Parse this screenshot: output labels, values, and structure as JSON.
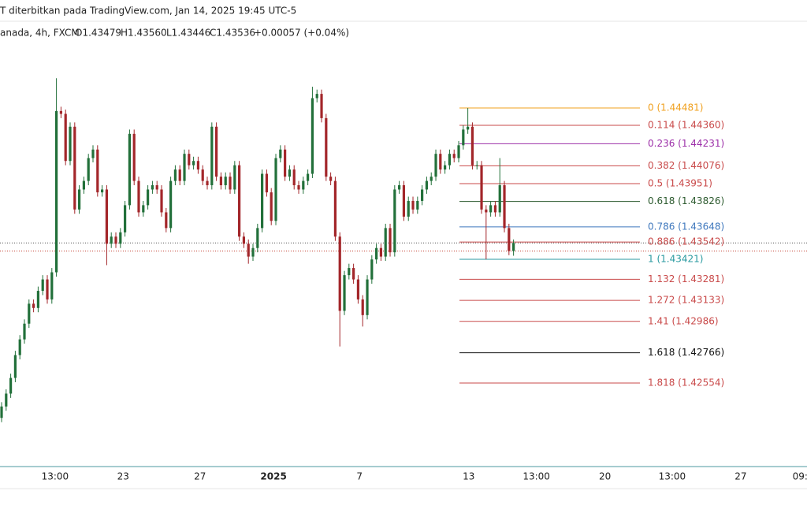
{
  "chart_data": {
    "type": "candlestick",
    "title": "T diterbitkan pada TradingView.com, Jan 14, 2025 19:45 UTC-5",
    "legend": {
      "symbol": "anada, 4h, FXCM",
      "open": "O1.43479",
      "high": "H1.43560",
      "low": "L1.43446",
      "close": "C1.43536",
      "change": "+0.00057 (+0.04%)"
    },
    "up_color": "#22703a",
    "down_color": "#a3262a",
    "open": [
      1.4231,
      1.4239,
      1.4248,
      1.4259,
      1.4275,
      1.4286,
      1.4297,
      1.4311,
      1.4308,
      1.432,
      1.4328,
      1.4314,
      1.4333,
      1.4446,
      1.4444,
      1.4411,
      1.4435,
      1.4377,
      1.4391,
      1.4397,
      1.4413,
      1.4419,
      1.4389,
      1.4391,
      1.4353,
      1.4358,
      1.4353,
      1.4361,
      1.438,
      1.443,
      1.4397,
      1.4375,
      1.438,
      1.4391,
      1.4394,
      1.4391,
      1.4375,
      1.4364,
      1.4397,
      1.4405,
      1.4397,
      1.4416,
      1.4408,
      1.4411,
      1.4405,
      1.4397,
      1.4394,
      1.4435,
      1.44,
      1.4394,
      1.44,
      1.4391,
      1.4408,
      1.4358,
      1.4353,
      1.4344,
      1.435,
      1.4364,
      1.4402,
      1.4389,
      1.4369,
      1.4413,
      1.4419,
      1.44,
      1.4405,
      1.4394,
      1.4391,
      1.4397,
      1.4402,
      1.4455,
      1.4458,
      1.4441,
      1.44,
      1.4397,
      1.4358,
      1.4306,
      1.4331,
      1.4336,
      1.4328,
      1.4314,
      1.4303,
      1.4328,
      1.4342,
      1.435,
      1.4344,
      1.4364,
      1.4347,
      1.4391,
      1.4394,
      1.4372,
      1.4383,
      1.4377,
      1.4383,
      1.4391,
      1.4397,
      1.44,
      1.4416,
      1.4405,
      1.4408,
      1.4416,
      1.4413,
      1.4422,
      1.4433,
      1.4435,
      1.4408,
      1.4408,
      1.4377,
      1.4375,
      1.438,
      1.4375,
      1.4394,
      1.4364,
      1.43479
    ],
    "high": [
      1.4242,
      1.4251,
      1.4262,
      1.4278,
      1.4289,
      1.43,
      1.4314,
      1.4314,
      1.4323,
      1.4331,
      1.4331,
      1.4336,
      1.4469,
      1.4449,
      1.4447,
      1.4438,
      1.4438,
      1.4394,
      1.44,
      1.4416,
      1.4422,
      1.4422,
      1.4394,
      1.4394,
      1.4361,
      1.4361,
      1.4364,
      1.4383,
      1.4433,
      1.4433,
      1.44,
      1.4383,
      1.4394,
      1.4397,
      1.4397,
      1.4394,
      1.4378,
      1.44,
      1.4408,
      1.4408,
      1.4419,
      1.4419,
      1.4414,
      1.4414,
      1.4408,
      1.44,
      1.4438,
      1.4438,
      1.4403,
      1.4403,
      1.4403,
      1.4411,
      1.4411,
      1.4361,
      1.4356,
      1.4353,
      1.4367,
      1.4405,
      1.4405,
      1.4392,
      1.4416,
      1.4422,
      1.4422,
      1.4408,
      1.4408,
      1.4397,
      1.44,
      1.4405,
      1.4463,
      1.4461,
      1.4461,
      1.4444,
      1.4403,
      1.44,
      1.4361,
      1.4334,
      1.4339,
      1.4339,
      1.4331,
      1.4317,
      1.4331,
      1.4345,
      1.4353,
      1.4353,
      1.4367,
      1.4367,
      1.4394,
      1.4397,
      1.4397,
      1.4386,
      1.4386,
      1.4386,
      1.4394,
      1.44,
      1.4403,
      1.4419,
      1.4419,
      1.4411,
      1.4419,
      1.4419,
      1.4425,
      1.4436,
      1.44481,
      1.4438,
      1.4411,
      1.4411,
      1.438,
      1.4383,
      1.4383,
      1.4413,
      1.4397,
      1.4367,
      1.4356
    ],
    "low": [
      1.4228,
      1.4236,
      1.4245,
      1.4256,
      1.4272,
      1.4283,
      1.4294,
      1.4305,
      1.4305,
      1.4317,
      1.4311,
      1.4311,
      1.433,
      1.4441,
      1.4408,
      1.4408,
      1.4374,
      1.4374,
      1.4388,
      1.4394,
      1.441,
      1.4386,
      1.4386,
      1.4338,
      1.435,
      1.435,
      1.435,
      1.4358,
      1.4377,
      1.4394,
      1.4372,
      1.4372,
      1.4377,
      1.4388,
      1.4388,
      1.4372,
      1.4361,
      1.4361,
      1.4394,
      1.4394,
      1.4394,
      1.4405,
      1.4405,
      1.4402,
      1.4394,
      1.4391,
      1.4391,
      1.4397,
      1.4391,
      1.4391,
      1.4388,
      1.4388,
      1.4355,
      1.435,
      1.4339,
      1.4341,
      1.4347,
      1.4361,
      1.4386,
      1.4366,
      1.4366,
      1.441,
      1.4397,
      1.4397,
      1.4391,
      1.4388,
      1.4388,
      1.4394,
      1.4399,
      1.4452,
      1.4438,
      1.4397,
      1.4394,
      1.4355,
      1.4281,
      1.4303,
      1.4328,
      1.4325,
      1.4311,
      1.4295,
      1.43,
      1.4325,
      1.4339,
      1.4341,
      1.4341,
      1.4344,
      1.4344,
      1.4388,
      1.4369,
      1.4369,
      1.4374,
      1.4374,
      1.438,
      1.4388,
      1.4394,
      1.4397,
      1.4402,
      1.4402,
      1.4405,
      1.441,
      1.441,
      1.4419,
      1.443,
      1.4405,
      1.4405,
      1.4374,
      1.43421,
      1.4372,
      1.4372,
      1.4372,
      1.4361,
      1.4345,
      1.43446
    ],
    "close": [
      1.4239,
      1.4248,
      1.4259,
      1.4275,
      1.4286,
      1.4297,
      1.4311,
      1.4308,
      1.432,
      1.4328,
      1.4314,
      1.4333,
      1.4446,
      1.4444,
      1.4411,
      1.4435,
      1.4377,
      1.4391,
      1.4397,
      1.4413,
      1.4419,
      1.4389,
      1.4391,
      1.4353,
      1.4358,
      1.4353,
      1.4361,
      1.438,
      1.443,
      1.4397,
      1.4375,
      1.438,
      1.4391,
      1.4394,
      1.4391,
      1.4375,
      1.4364,
      1.4397,
      1.4405,
      1.4397,
      1.4416,
      1.4408,
      1.4411,
      1.4405,
      1.4397,
      1.4394,
      1.4435,
      1.44,
      1.4394,
      1.44,
      1.4391,
      1.4408,
      1.4358,
      1.4353,
      1.4344,
      1.435,
      1.4364,
      1.4402,
      1.4389,
      1.4369,
      1.4413,
      1.4419,
      1.44,
      1.4405,
      1.4394,
      1.4391,
      1.4397,
      1.4402,
      1.4455,
      1.4458,
      1.4441,
      1.44,
      1.4397,
      1.4358,
      1.4306,
      1.4331,
      1.4336,
      1.4328,
      1.4314,
      1.4303,
      1.4328,
      1.4342,
      1.435,
      1.4344,
      1.4364,
      1.4347,
      1.4391,
      1.4394,
      1.4372,
      1.4383,
      1.4377,
      1.4383,
      1.4391,
      1.4397,
      1.44,
      1.4416,
      1.4405,
      1.4408,
      1.4416,
      1.4413,
      1.4422,
      1.4433,
      1.4435,
      1.4408,
      1.4408,
      1.4377,
      1.4375,
      1.438,
      1.4375,
      1.4394,
      1.4364,
      1.43479,
      1.43536
    ],
    "xlim": [
      -0.345,
      176.2
    ],
    "xticks": [
      {
        "value": 11.7,
        "label": "13:00"
      },
      {
        "value": 26.6,
        "label": "23"
      },
      {
        "value": 43.4,
        "label": "27"
      },
      {
        "value": 59.5,
        "label": "2025"
      },
      {
        "value": 78.3,
        "label": "7"
      },
      {
        "value": 102.2,
        "label": "13"
      },
      {
        "value": 117,
        "label": "13:00"
      },
      {
        "value": 132,
        "label": "20"
      },
      {
        "value": 146.7,
        "label": "13:00"
      },
      {
        "value": 161.7,
        "label": "27"
      },
      {
        "value": 174.7,
        "label": "09:"
      }
    ],
    "ylim": [
      1.41969,
      1.44934
    ],
    "fib_levels": [
      {
        "label": "0 (1.44481)",
        "price": 1.44481,
        "color": "#f0a01e"
      },
      {
        "label": "0.114 (1.44360)",
        "price": 1.4436,
        "color": "#c94a4a"
      },
      {
        "label": "0.236 (1.44231)",
        "price": 1.44231,
        "color": "#9c2fa8"
      },
      {
        "label": "0.382 (1.44076)",
        "price": 1.44076,
        "color": "#c94a4a"
      },
      {
        "label": "0.5 (1.43951)",
        "price": 1.43951,
        "color": "#c94a4a"
      },
      {
        "label": "0.618 (1.43826)",
        "price": 1.43826,
        "color": "#2c5a2e"
      },
      {
        "label": "0.786 (1.43648)",
        "price": 1.43648,
        "color": "#3f78bd"
      },
      {
        "label": "0.886 (1.43542)",
        "price": 1.43542,
        "color": "#c94a4a"
      },
      {
        "label": "1 (1.43421)",
        "price": 1.43421,
        "color": "#2a9aa0"
      },
      {
        "label": "1.132 (1.43281)",
        "price": 1.43281,
        "color": "#c94a4a"
      },
      {
        "label": "1.272 (1.43133)",
        "price": 1.43133,
        "color": "#c94a4a"
      },
      {
        "label": "1.41 (1.42986)",
        "price": 1.42986,
        "color": "#c94a4a"
      },
      {
        "label": "1.618 (1.42766)",
        "price": 1.42766,
        "color": "#111111"
      },
      {
        "label": "1.818 (1.42554)",
        "price": 1.42554,
        "color": "#c94a4a"
      }
    ]
  }
}
